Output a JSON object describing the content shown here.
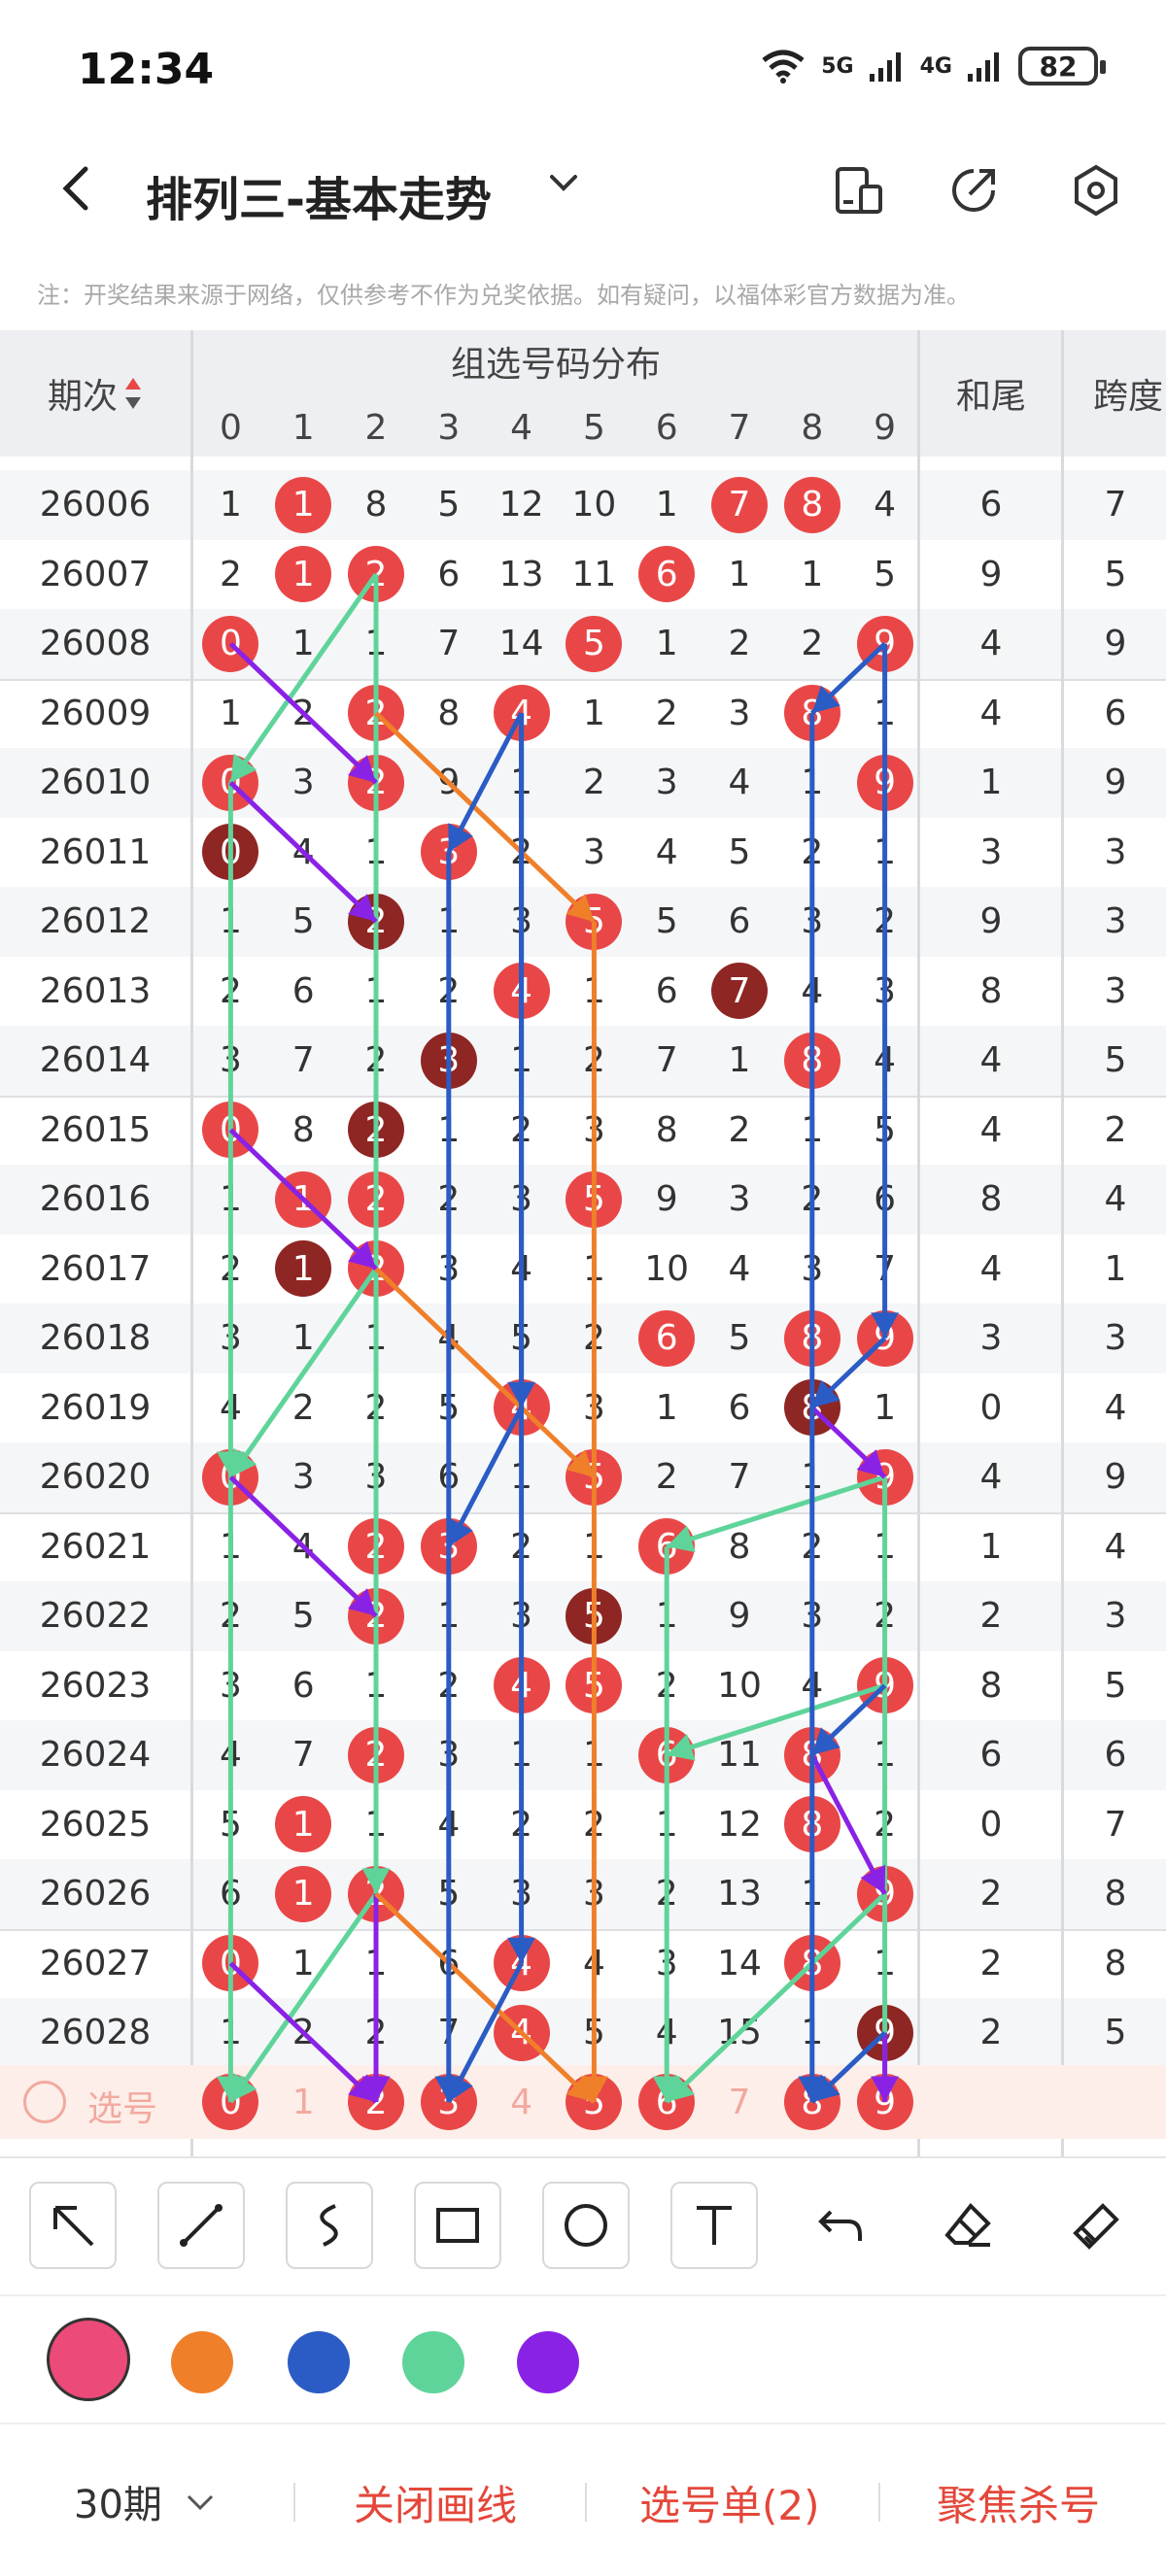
{
  "status_bar": {
    "time": "12:34",
    "battery": "82",
    "network_1": "5G",
    "network_2": "4G"
  },
  "header": {
    "title": "排列三-基本走势"
  },
  "note": "注：开奖结果来源于网络，仅供参考不作为兑奖依据。如有疑问，以福体彩官方数据为准。",
  "table": {
    "col_period": "期次",
    "group_title": "组选号码分布",
    "col_sum_tail": "和尾",
    "col_span": "跨度",
    "digits": [
      "0",
      "1",
      "2",
      "3",
      "4",
      "5",
      "6",
      "7",
      "8",
      "9"
    ],
    "rows": [
      {
        "period": "26006",
        "cells": [
          "1",
          "1",
          "8",
          "5",
          "12",
          "10",
          "1",
          "7",
          "8",
          "4"
        ],
        "balls": [
          1,
          7,
          8
        ],
        "sum_tail": "6",
        "span": "7"
      },
      {
        "period": "26007",
        "cells": [
          "2",
          "1",
          "2",
          "6",
          "13",
          "11",
          "6",
          "1",
          "1",
          "5"
        ],
        "balls": [
          1,
          2,
          6
        ],
        "sum_tail": "9",
        "span": "5"
      },
      {
        "period": "26008",
        "cells": [
          "0",
          "1",
          "1",
          "7",
          "14",
          "5",
          "1",
          "2",
          "2",
          "9"
        ],
        "balls": [
          0,
          5,
          9
        ],
        "sum_tail": "4",
        "span": "9"
      },
      {
        "period": "26009",
        "cells": [
          "1",
          "2",
          "2",
          "8",
          "4",
          "1",
          "2",
          "3",
          "8",
          "1"
        ],
        "balls": [
          2,
          4,
          8
        ],
        "sum_tail": "4",
        "span": "6"
      },
      {
        "period": "26010",
        "cells": [
          "0",
          "3",
          "2",
          "9",
          "1",
          "2",
          "3",
          "4",
          "1",
          "9"
        ],
        "balls": [
          0,
          2,
          9
        ],
        "sum_tail": "1",
        "span": "9"
      },
      {
        "period": "26011",
        "cells": [
          "0",
          "4",
          "1",
          "3",
          "2",
          "3",
          "4",
          "5",
          "2",
          "1"
        ],
        "balls": [
          3
        ],
        "dark": [
          0
        ],
        "sum_tail": "3",
        "span": "3"
      },
      {
        "period": "26012",
        "cells": [
          "1",
          "5",
          "2",
          "1",
          "3",
          "5",
          "5",
          "6",
          "3",
          "2"
        ],
        "balls": [
          5
        ],
        "dark": [
          2
        ],
        "sum_tail": "9",
        "span": "3"
      },
      {
        "period": "26013",
        "cells": [
          "2",
          "6",
          "1",
          "2",
          "4",
          "1",
          "6",
          "7",
          "4",
          "3"
        ],
        "balls": [
          4
        ],
        "dark": [
          7
        ],
        "sum_tail": "8",
        "span": "3"
      },
      {
        "period": "26014",
        "cells": [
          "3",
          "7",
          "2",
          "3",
          "1",
          "2",
          "7",
          "1",
          "8",
          "4"
        ],
        "balls": [
          8
        ],
        "dark": [
          3
        ],
        "sum_tail": "4",
        "span": "5"
      },
      {
        "period": "26015",
        "cells": [
          "0",
          "8",
          "2",
          "1",
          "2",
          "3",
          "8",
          "2",
          "1",
          "5"
        ],
        "balls": [
          0
        ],
        "dark": [
          2
        ],
        "sum_tail": "4",
        "span": "2"
      },
      {
        "period": "26016",
        "cells": [
          "1",
          "1",
          "2",
          "2",
          "3",
          "5",
          "9",
          "3",
          "2",
          "6"
        ],
        "balls": [
          1,
          2,
          5
        ],
        "sum_tail": "8",
        "span": "4"
      },
      {
        "period": "26017",
        "cells": [
          "2",
          "1",
          "2",
          "3",
          "4",
          "1",
          "10",
          "4",
          "3",
          "7"
        ],
        "balls": [
          2
        ],
        "dark": [
          1
        ],
        "sum_tail": "4",
        "span": "1"
      },
      {
        "period": "26018",
        "cells": [
          "3",
          "1",
          "1",
          "4",
          "5",
          "2",
          "6",
          "5",
          "8",
          "9"
        ],
        "balls": [
          6,
          8,
          9
        ],
        "sum_tail": "3",
        "span": "3"
      },
      {
        "period": "26019",
        "cells": [
          "4",
          "2",
          "2",
          "5",
          "4",
          "3",
          "1",
          "6",
          "8",
          "1"
        ],
        "balls": [
          4
        ],
        "dark": [
          8
        ],
        "sum_tail": "0",
        "span": "4"
      },
      {
        "period": "26020",
        "cells": [
          "0",
          "3",
          "3",
          "6",
          "1",
          "5",
          "2",
          "7",
          "1",
          "9"
        ],
        "balls": [
          0,
          5,
          9
        ],
        "sum_tail": "4",
        "span": "9"
      },
      {
        "period": "26021",
        "cells": [
          "1",
          "4",
          "2",
          "3",
          "2",
          "1",
          "6",
          "8",
          "2",
          "1"
        ],
        "balls": [
          2,
          3,
          6
        ],
        "sum_tail": "1",
        "span": "4"
      },
      {
        "period": "26022",
        "cells": [
          "2",
          "5",
          "2",
          "1",
          "3",
          "5",
          "1",
          "9",
          "3",
          "2"
        ],
        "balls": [
          2
        ],
        "dark": [
          5
        ],
        "sum_tail": "2",
        "span": "3"
      },
      {
        "period": "26023",
        "cells": [
          "3",
          "6",
          "1",
          "2",
          "4",
          "5",
          "2",
          "10",
          "4",
          "9"
        ],
        "balls": [
          4,
          5,
          9
        ],
        "sum_tail": "8",
        "span": "5"
      },
      {
        "period": "26024",
        "cells": [
          "4",
          "7",
          "2",
          "3",
          "1",
          "1",
          "6",
          "11",
          "8",
          "1"
        ],
        "balls": [
          2,
          6,
          8
        ],
        "sum_tail": "6",
        "span": "6"
      },
      {
        "period": "26025",
        "cells": [
          "5",
          "1",
          "1",
          "4",
          "2",
          "2",
          "1",
          "12",
          "8",
          "2"
        ],
        "balls": [
          1,
          8
        ],
        "sum_tail": "0",
        "span": "7"
      },
      {
        "period": "26026",
        "cells": [
          "6",
          "1",
          "2",
          "5",
          "3",
          "3",
          "2",
          "13",
          "1",
          "9"
        ],
        "balls": [
          1,
          2,
          9
        ],
        "sum_tail": "2",
        "span": "8"
      },
      {
        "period": "26027",
        "cells": [
          "0",
          "1",
          "1",
          "6",
          "4",
          "4",
          "3",
          "14",
          "8",
          "1"
        ],
        "balls": [
          0,
          4,
          8
        ],
        "sum_tail": "2",
        "span": "8"
      },
      {
        "period": "26028",
        "cells": [
          "1",
          "2",
          "2",
          "7",
          "4",
          "5",
          "4",
          "15",
          "1",
          "9"
        ],
        "balls": [
          4
        ],
        "dark": [
          9
        ],
        "sum_tail": "2",
        "span": "5"
      }
    ],
    "pick_label": "选号",
    "pick_balls": [
      0,
      2,
      3,
      5,
      6,
      8,
      9
    ],
    "pick_cells": [
      "0",
      "1",
      "2",
      "3",
      "4",
      "5",
      "6",
      "7",
      "8",
      "9"
    ]
  },
  "drawing_colors": {
    "pink": "#ec4a78",
    "orange": "#f07f2a",
    "blue": "#2b5bc4",
    "green": "#5fd49a",
    "purple": "#8a22e6"
  },
  "bottom_bar": {
    "periods": "30期",
    "close_lines": "关闭画线",
    "pick_list": "选号单(2)",
    "focus_kill": "聚焦杀号"
  }
}
